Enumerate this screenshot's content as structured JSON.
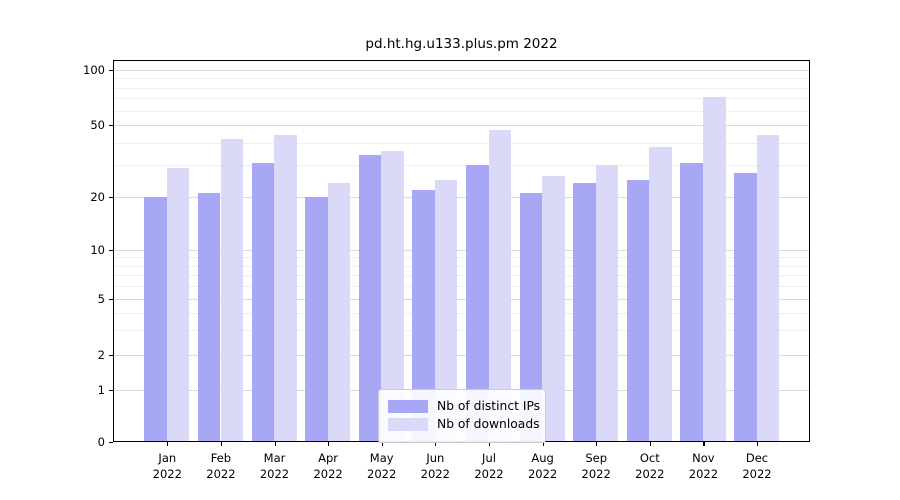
{
  "title": "pd.ht.hg.u133.plus.pm 2022",
  "legend": {
    "items": [
      {
        "label": "Nb of distinct IPs",
        "color": "#a7a7f6"
      },
      {
        "label": "Nb of downloads",
        "color": "#dadaf8"
      }
    ]
  },
  "chart_data": {
    "type": "bar",
    "title": "pd.ht.hg.u133.plus.pm 2022",
    "categories": [
      "Jan 2022",
      "Feb 2022",
      "Mar 2022",
      "Apr 2022",
      "May 2022",
      "Jun 2022",
      "Jul 2022",
      "Aug 2022",
      "Sep 2022",
      "Oct 2022",
      "Nov 2022",
      "Dec 2022"
    ],
    "x_months": [
      "Jan",
      "Feb",
      "Mar",
      "Apr",
      "May",
      "Jun",
      "Jul",
      "Aug",
      "Sep",
      "Oct",
      "Nov",
      "Dec"
    ],
    "x_year": "2022",
    "series": [
      {
        "name": "Nb of distinct IPs",
        "color": "#a7a7f6",
        "values": [
          20,
          21,
          31,
          20,
          34,
          22,
          30,
          21,
          24,
          25,
          31,
          27
        ]
      },
      {
        "name": "Nb of downloads",
        "color": "#dadaf8",
        "values": [
          29,
          42,
          44,
          24,
          36,
          25,
          47,
          26,
          30,
          38,
          71,
          44
        ]
      }
    ],
    "ytick_labels": [
      "0",
      "1",
      "2",
      "5",
      "10",
      "20",
      "50",
      "100"
    ],
    "yticks": [
      0,
      1,
      2,
      5,
      10,
      20,
      50,
      100
    ],
    "minor_grid_values": [
      3,
      4,
      6,
      7,
      8,
      9,
      30,
      40,
      60,
      70,
      80,
      90
    ],
    "yscale": "log-like (compressed near zero)",
    "ylim": [
      0,
      110
    ],
    "grid": true,
    "legend_position": "lower center"
  }
}
